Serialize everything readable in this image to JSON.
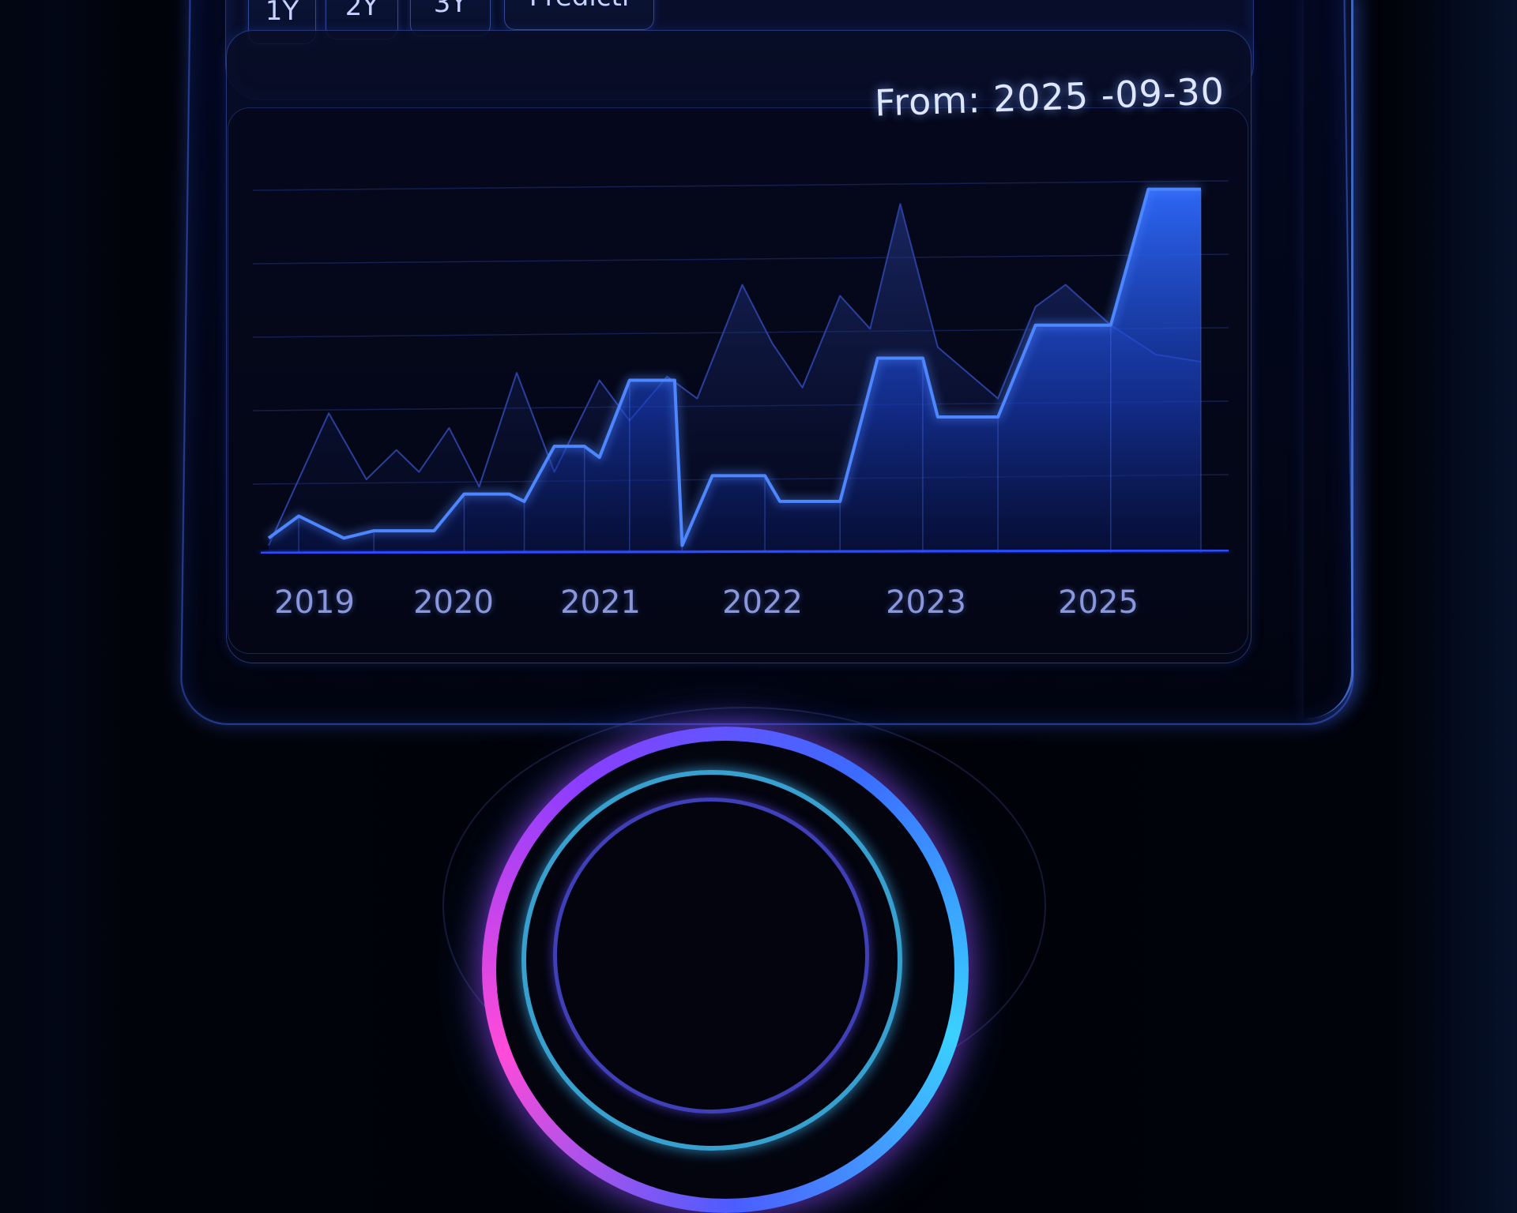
{
  "range_buttons": [
    {
      "label": "1Y"
    },
    {
      "label": "2Y"
    },
    {
      "label": "3Y"
    },
    {
      "label": "Predicti"
    }
  ],
  "chart": {
    "from_label": "From:",
    "from_value": "2025 -09-30"
  },
  "colors": {
    "accent": "#2f6bff",
    "line_glow": "#3d7dff",
    "ghost_area": "#1b2a6a",
    "ring_magenta": "#ff4bd8",
    "ring_cyan": "#3ad1ff"
  },
  "chart_data": {
    "type": "area",
    "xlabel": "",
    "ylabel": "",
    "x_tick_labels": [
      "2019",
      "2020",
      "2021",
      "2022",
      "2023",
      "2025"
    ],
    "grid": true,
    "ylim": [
      0,
      100
    ],
    "series": [
      {
        "values": [
          {
            "x": 2018.9,
            "y": 4
          },
          {
            "x": 2019.1,
            "y": 10
          },
          {
            "x": 2019.4,
            "y": 4
          },
          {
            "x": 2019.6,
            "y": 6
          },
          {
            "x": 2020.0,
            "y": 6
          },
          {
            "x": 2020.2,
            "y": 16
          },
          {
            "x": 2020.5,
            "y": 16
          },
          {
            "x": 2020.6,
            "y": 14
          },
          {
            "x": 2020.8,
            "y": 29
          },
          {
            "x": 2021.0,
            "y": 29
          },
          {
            "x": 2021.1,
            "y": 26
          },
          {
            "x": 2021.3,
            "y": 47
          },
          {
            "x": 2021.6,
            "y": 47
          },
          {
            "x": 2021.65,
            "y": 2
          },
          {
            "x": 2021.85,
            "y": 21
          },
          {
            "x": 2022.2,
            "y": 21
          },
          {
            "x": 2022.3,
            "y": 14
          },
          {
            "x": 2022.7,
            "y": 14
          },
          {
            "x": 2022.95,
            "y": 53
          },
          {
            "x": 2023.25,
            "y": 53
          },
          {
            "x": 2023.35,
            "y": 37
          },
          {
            "x": 2023.75,
            "y": 37
          },
          {
            "x": 2024.0,
            "y": 62
          },
          {
            "x": 2024.5,
            "y": 62
          },
          {
            "x": 2024.75,
            "y": 99
          },
          {
            "x": 2025.1,
            "y": 99
          }
        ]
      },
      {
        "values": [
          {
            "x": 2018.9,
            "y": 2
          },
          {
            "x": 2019.3,
            "y": 38
          },
          {
            "x": 2019.55,
            "y": 20
          },
          {
            "x": 2019.75,
            "y": 28
          },
          {
            "x": 2019.9,
            "y": 22
          },
          {
            "x": 2020.1,
            "y": 34
          },
          {
            "x": 2020.3,
            "y": 18
          },
          {
            "x": 2020.55,
            "y": 49
          },
          {
            "x": 2020.8,
            "y": 22
          },
          {
            "x": 2021.1,
            "y": 47
          },
          {
            "x": 2021.3,
            "y": 36
          },
          {
            "x": 2021.55,
            "y": 48
          },
          {
            "x": 2021.75,
            "y": 42
          },
          {
            "x": 2022.05,
            "y": 73
          },
          {
            "x": 2022.25,
            "y": 57
          },
          {
            "x": 2022.45,
            "y": 45
          },
          {
            "x": 2022.7,
            "y": 70
          },
          {
            "x": 2022.9,
            "y": 61
          },
          {
            "x": 2023.1,
            "y": 95
          },
          {
            "x": 2023.35,
            "y": 56
          },
          {
            "x": 2023.75,
            "y": 42
          },
          {
            "x": 2024.0,
            "y": 67
          },
          {
            "x": 2024.2,
            "y": 73
          },
          {
            "x": 2024.5,
            "y": 62
          },
          {
            "x": 2024.8,
            "y": 54
          },
          {
            "x": 2025.1,
            "y": 52
          }
        ]
      }
    ]
  }
}
